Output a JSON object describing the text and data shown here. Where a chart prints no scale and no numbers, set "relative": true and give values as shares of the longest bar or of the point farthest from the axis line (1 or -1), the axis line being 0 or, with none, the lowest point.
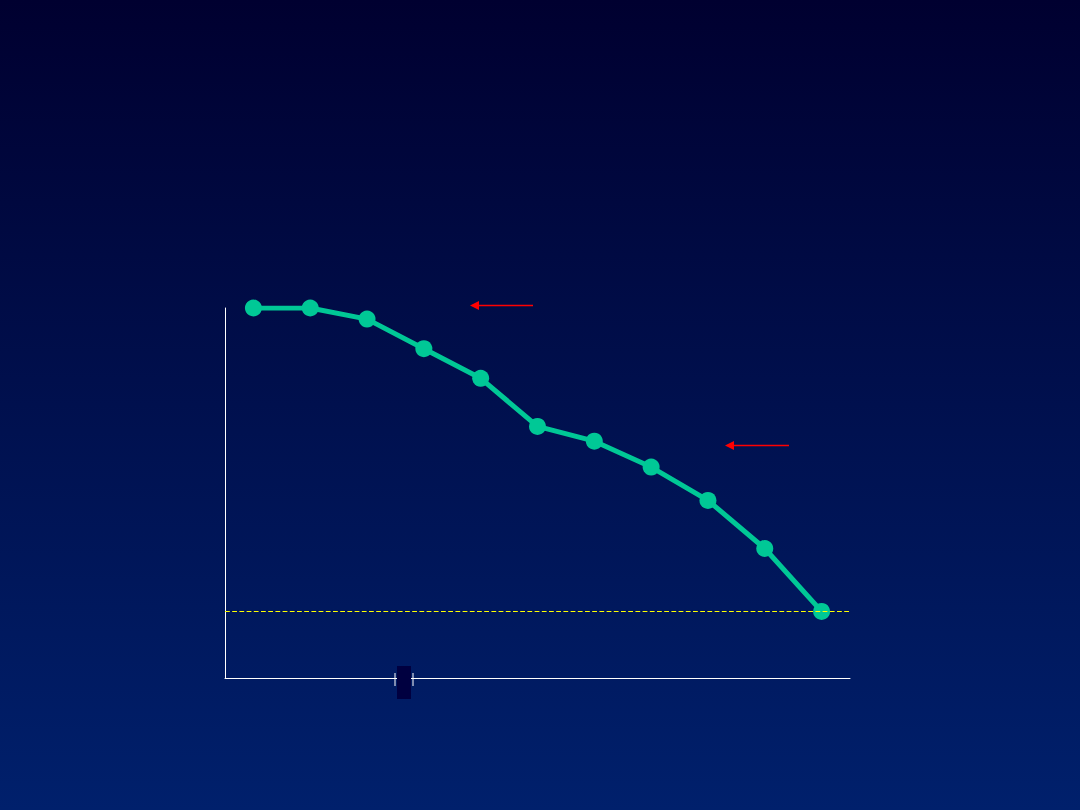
{
  "chart_data": {
    "type": "line",
    "relative": true,
    "categories": [
      null,
      null,
      null,
      null,
      null,
      null,
      null,
      null,
      null,
      null,
      null
    ],
    "series": [
      {
        "color": "#00c896",
        "values": [
          1,
          1,
          0.97,
          0.89,
          0.81,
          0.68,
          0.64,
          0.57,
          0.48,
          0.35,
          0.18
        ]
      }
    ],
    "ref_lines": [
      {
        "axis": "y",
        "value": 0.18,
        "color": "#ffff00",
        "line_style": "dashed"
      }
    ],
    "marker": "circle",
    "line_style": "solid",
    "grid": false
  }
}
